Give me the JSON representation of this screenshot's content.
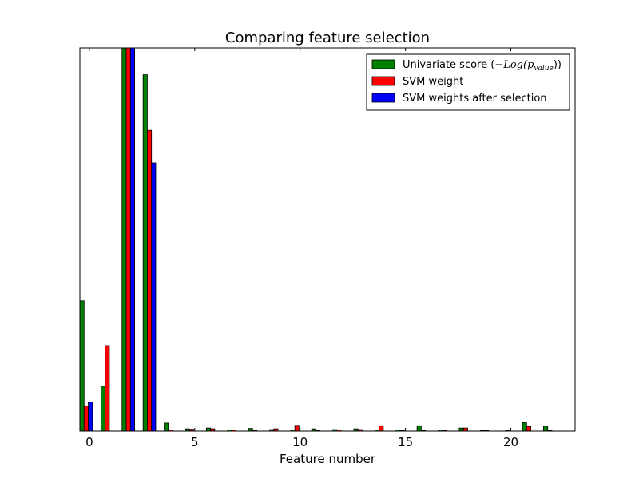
{
  "chart_data": {
    "type": "bar",
    "title": "Comparing feature selection",
    "xlabel": "Feature number",
    "ylabel": "",
    "xlim": [
      -0.45,
      23.05
    ],
    "ylim": [
      0,
      1
    ],
    "xticks": [
      0,
      5,
      10,
      15,
      20
    ],
    "yticks": [],
    "grid": false,
    "legend_placement": "top-right",
    "bar_width": 0.2,
    "x": [
      0,
      1,
      2,
      3,
      4,
      5,
      6,
      7,
      8,
      9,
      10,
      11,
      12,
      13,
      14,
      15,
      16,
      17,
      18,
      19,
      20,
      21,
      22
    ],
    "series": [
      {
        "name": "Univariate score",
        "legend_math": "(−Log(p_value))",
        "color": "#008000",
        "offset": -0.45,
        "values": [
          0.34,
          0.117,
          1.0,
          0.93,
          0.021,
          0.006,
          0.008,
          0.003,
          0.007,
          0.004,
          0.003,
          0.006,
          0.004,
          0.006,
          0.003,
          0.003,
          0.014,
          0.003,
          0.008,
          0.002,
          0.0,
          0.022,
          0.013
        ]
      },
      {
        "name": "SVM weight",
        "color": "#ff0000",
        "offset": -0.25,
        "values": [
          0.066,
          0.223,
          1.0,
          0.785,
          0.003,
          0.005,
          0.006,
          0.003,
          0.002,
          0.006,
          0.015,
          0.002,
          0.003,
          0.004,
          0.014,
          0.002,
          0.002,
          0.002,
          0.008,
          0.002,
          0.002,
          0.012,
          0.002
        ]
      },
      {
        "name": "SVM weights after selection",
        "color": "#0000ff",
        "offset": -0.05,
        "values": [
          0.076,
          0.0,
          1.0,
          0.7,
          0.0,
          0.0,
          0.0,
          0.0,
          0.0,
          0.0,
          0.0,
          0.0,
          0.0,
          0.0,
          0.0,
          0.0,
          0.0,
          0.0,
          0.0,
          0.0,
          0.0,
          0.0,
          0.0
        ]
      }
    ]
  }
}
